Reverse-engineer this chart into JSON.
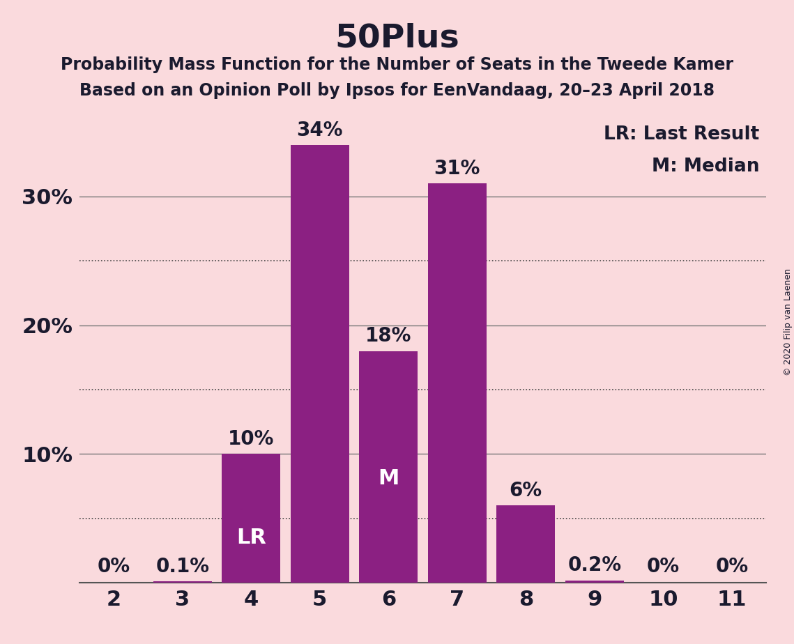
{
  "title": "50Plus",
  "subtitle1": "Probability Mass Function for the Number of Seats in the Tweede Kamer",
  "subtitle2": "Based on an Opinion Poll by Ipsos for EenVandaag, 20–23 April 2018",
  "copyright": "© 2020 Filip van Laenen",
  "categories": [
    2,
    3,
    4,
    5,
    6,
    7,
    8,
    9,
    10,
    11
  ],
  "values": [
    0.0,
    0.1,
    10.0,
    34.0,
    18.0,
    31.0,
    6.0,
    0.2,
    0.0,
    0.0
  ],
  "bar_color": "#8B2082",
  "background_color": "#FADADD",
  "label_color_outside": "#1a1a2e",
  "label_color_inside": "white",
  "yticks": [
    10,
    20,
    30
  ],
  "ytick_labels": [
    "10%",
    "20%",
    "30%"
  ],
  "dotted_yticks": [
    5,
    15,
    25
  ],
  "ylim": [
    0,
    37
  ],
  "legend_lr": "LR: Last Result",
  "legend_m": "M: Median",
  "lr_seat": 4,
  "median_seat": 6,
  "title_fontsize": 34,
  "subtitle_fontsize": 17,
  "axis_tick_fontsize": 22,
  "bar_label_fontsize": 20,
  "legend_fontsize": 19,
  "copyright_fontsize": 9
}
